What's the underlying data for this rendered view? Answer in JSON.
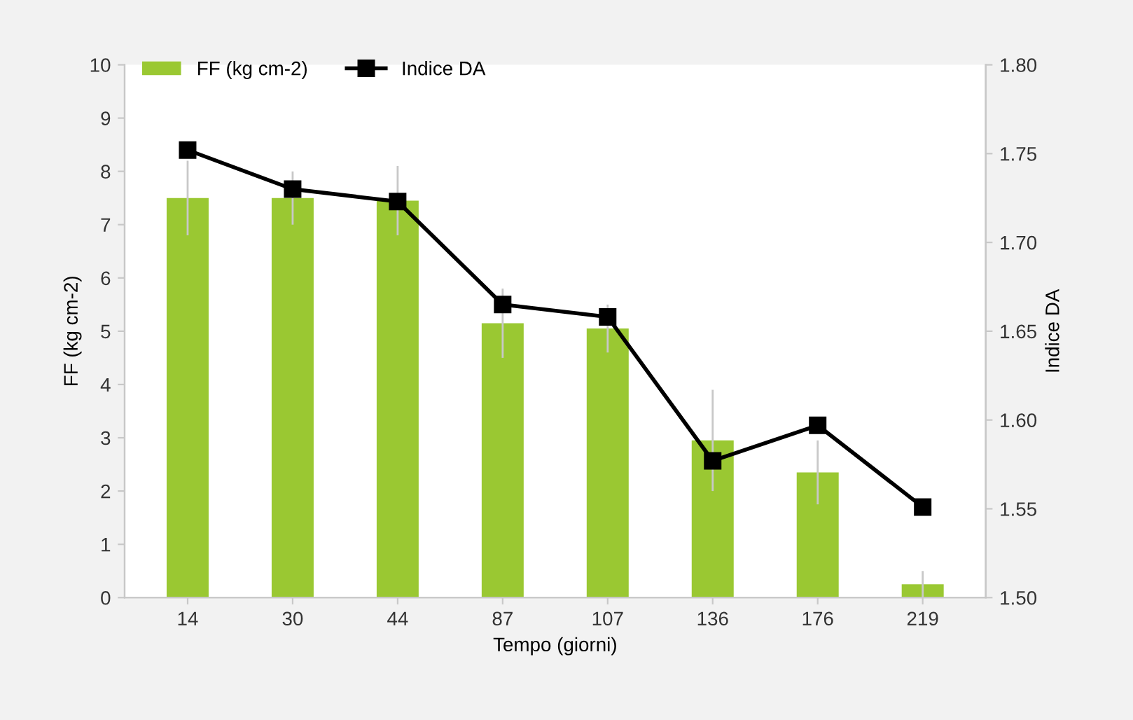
{
  "chart_data": {
    "type": "bar",
    "xlabel": "Tempo (giorni)",
    "ylabel": "FF (kg cm-2)",
    "y2label": "Indice DA",
    "categories": [
      "14",
      "30",
      "44",
      "87",
      "107",
      "136",
      "176",
      "219"
    ],
    "series": [
      {
        "name": "FF (kg cm-2)",
        "color": "#9ac832",
        "values": [
          7.5,
          7.5,
          7.45,
          5.15,
          5.05,
          2.95,
          2.35,
          0.25
        ],
        "errors": [
          0.7,
          0.5,
          0.65,
          0.65,
          0.45,
          0.95,
          0.6,
          0.25
        ]
      },
      {
        "name": "Indice DA",
        "type": "line",
        "axis": "y2",
        "color": "#000000",
        "marker": "square",
        "values": [
          1.752,
          1.73,
          1.723,
          1.665,
          1.658,
          1.577,
          1.597,
          1.551
        ]
      }
    ],
    "ylim": [
      0,
      10
    ],
    "yticks": [
      0,
      1,
      2,
      3,
      4,
      5,
      6,
      7,
      8,
      9,
      10
    ],
    "y2lim": [
      1.5,
      1.8
    ],
    "y2ticks": [
      {
        "value": 1.5,
        "label": "1.50"
      },
      {
        "value": 1.55,
        "label": "1.55"
      },
      {
        "value": 1.6,
        "label": "1.60"
      },
      {
        "value": 1.65,
        "label": "1.65"
      },
      {
        "value": 1.7,
        "label": "1.70"
      },
      {
        "value": 1.75,
        "label": "1.75"
      },
      {
        "value": 1.8,
        "label": "1.80"
      }
    ],
    "grid": false,
    "legend": "top left"
  }
}
